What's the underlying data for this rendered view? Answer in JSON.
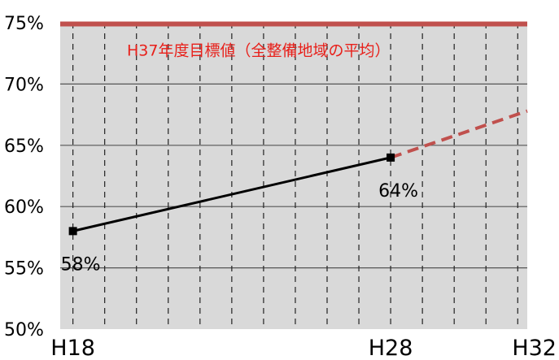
{
  "chart_data": {
    "type": "line",
    "title": "",
    "xlabel": "",
    "ylabel": "",
    "ylim": [
      50,
      75
    ],
    "y_ticks": [
      "50%",
      "55%",
      "60%",
      "65%",
      "70%",
      "75%"
    ],
    "y_tick_values": [
      50,
      55,
      60,
      65,
      70,
      75
    ],
    "x_tick_labels": [
      "H18",
      "H28",
      "H32"
    ],
    "x_tick_years": [
      18,
      28,
      32
    ],
    "xlim": [
      17.6,
      32.3
    ],
    "grid": "vertical dashed",
    "series": [
      {
        "kind": "actual",
        "x": [
          18,
          28
        ],
        "y": [
          58,
          64
        ],
        "color": "#000000",
        "style": "solid",
        "labels": [
          "58%",
          "64%"
        ]
      },
      {
        "kind": "projection",
        "x": [
          28,
          32.3
        ],
        "y": [
          64,
          67.8
        ],
        "color": "#c0504d",
        "style": "dashed"
      }
    ],
    "target": {
      "value": 74.9,
      "color": "#c0504d",
      "label": "H37年度目標値（全整備地域の平均）"
    },
    "plot_background": "#d9d9d9"
  }
}
